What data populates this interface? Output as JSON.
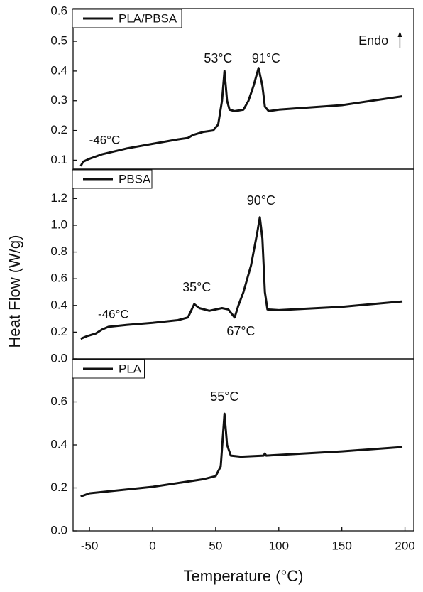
{
  "chart_data": [
    {
      "type": "line",
      "xlim": [
        -63,
        207
      ],
      "ylim": [
        0.07,
        0.61
      ],
      "yticks": [
        0.1,
        0.2,
        0.3,
        0.4,
        0.5,
        0.6
      ],
      "series": [
        {
          "name": "PLA/PBSA",
          "color": "#111111",
          "x": [
            -57,
            -55,
            -50,
            -40,
            -20,
            0,
            20,
            28,
            32,
            40,
            48,
            52,
            55,
            57,
            59,
            61,
            65,
            72,
            76,
            80,
            84,
            87,
            89,
            92,
            100,
            150,
            198
          ],
          "values": [
            0.08,
            0.095,
            0.105,
            0.12,
            0.14,
            0.155,
            0.17,
            0.175,
            0.185,
            0.195,
            0.2,
            0.22,
            0.3,
            0.4,
            0.3,
            0.27,
            0.265,
            0.27,
            0.3,
            0.35,
            0.41,
            0.35,
            0.28,
            0.265,
            0.27,
            0.285,
            0.315
          ]
        }
      ],
      "annotations": [
        "-46°C",
        "53°C",
        "91°C",
        "Endo"
      ]
    },
    {
      "type": "line",
      "xlim": [
        -63,
        207
      ],
      "ylim": [
        0,
        1.42
      ],
      "yticks": [
        {
          "value": 0,
          "label": "0.0"
        },
        0.2,
        0.4,
        0.6,
        0.8,
        {
          "value": 1,
          "label": "1.0"
        },
        1.2
      ],
      "ylabel": "Heat Flow (W/g)",
      "series": [
        {
          "name": "PBSA",
          "color": "#111111",
          "x": [
            -57,
            -52,
            -45,
            -40,
            -35,
            -20,
            0,
            20,
            28,
            33,
            37,
            45,
            55,
            60,
            65,
            68,
            72,
            78,
            83,
            85,
            87,
            89,
            91,
            100,
            150,
            198
          ],
          "values": [
            0.15,
            0.17,
            0.19,
            0.22,
            0.24,
            0.255,
            0.27,
            0.29,
            0.31,
            0.41,
            0.38,
            0.36,
            0.38,
            0.37,
            0.31,
            0.4,
            0.5,
            0.7,
            0.95,
            1.06,
            0.9,
            0.5,
            0.37,
            0.365,
            0.39,
            0.43
          ]
        }
      ],
      "annotations": [
        "-46°C",
        "35°C",
        "67°C",
        "90°C"
      ]
    },
    {
      "type": "line",
      "xlim": [
        -63,
        207
      ],
      "ylim": [
        0,
        0.8
      ],
      "yticks": [
        {
          "value": 0,
          "label": "0.0"
        },
        0.2,
        0.4,
        0.6
      ],
      "xticks": [
        -50,
        0,
        50,
        100,
        150,
        200
      ],
      "xlabel": "Temperature (°C)",
      "series": [
        {
          "name": "PLA",
          "color": "#111111",
          "x": [
            -57,
            -50,
            0,
            40,
            50,
            54,
            57,
            59,
            62,
            70,
            88,
            89,
            90,
            120,
            150,
            198
          ],
          "values": [
            0.16,
            0.175,
            0.205,
            0.24,
            0.255,
            0.3,
            0.545,
            0.4,
            0.35,
            0.345,
            0.35,
            0.36,
            0.35,
            0.36,
            0.37,
            0.39
          ]
        }
      ],
      "annotations": [
        "55°C"
      ]
    }
  ]
}
